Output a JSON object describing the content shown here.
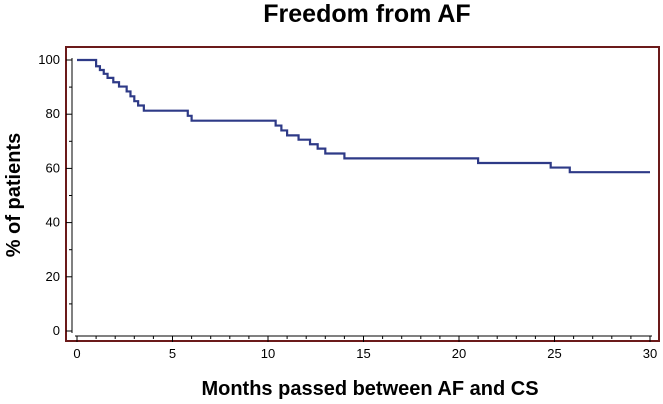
{
  "chart_data": {
    "type": "line",
    "title": "Freedom from AF",
    "xlabel": "Months passed between AF and CS",
    "ylabel": "% of patients",
    "xlim": [
      0,
      30
    ],
    "ylim": [
      0,
      100
    ],
    "xticks": [
      0,
      5,
      10,
      15,
      20,
      25,
      30
    ],
    "yticks": [
      0,
      20,
      40,
      60,
      80,
      100
    ],
    "grid": false,
    "series_color": "#2e3a87",
    "frame_color": "#6b1a1a",
    "series": [
      {
        "step": true,
        "x": [
          0,
          1.0,
          1.2,
          1.4,
          1.6,
          1.9,
          2.2,
          2.6,
          2.8,
          3.0,
          3.2,
          3.5,
          4.2,
          5.8,
          6.0,
          10.4,
          10.7,
          11.0,
          11.6,
          12.2,
          12.6,
          13.0,
          14.0,
          21.0,
          24.8,
          25.8,
          30.0
        ],
        "y": [
          100,
          97.7,
          96.3,
          94.9,
          93.4,
          91.8,
          90.2,
          88.4,
          86.6,
          84.8,
          83.2,
          81.3,
          81.3,
          79.4,
          77.6,
          75.8,
          74.0,
          72.2,
          70.6,
          68.9,
          67.3,
          65.5,
          63.7,
          62.0,
          60.3,
          58.6,
          58.6
        ]
      }
    ]
  }
}
